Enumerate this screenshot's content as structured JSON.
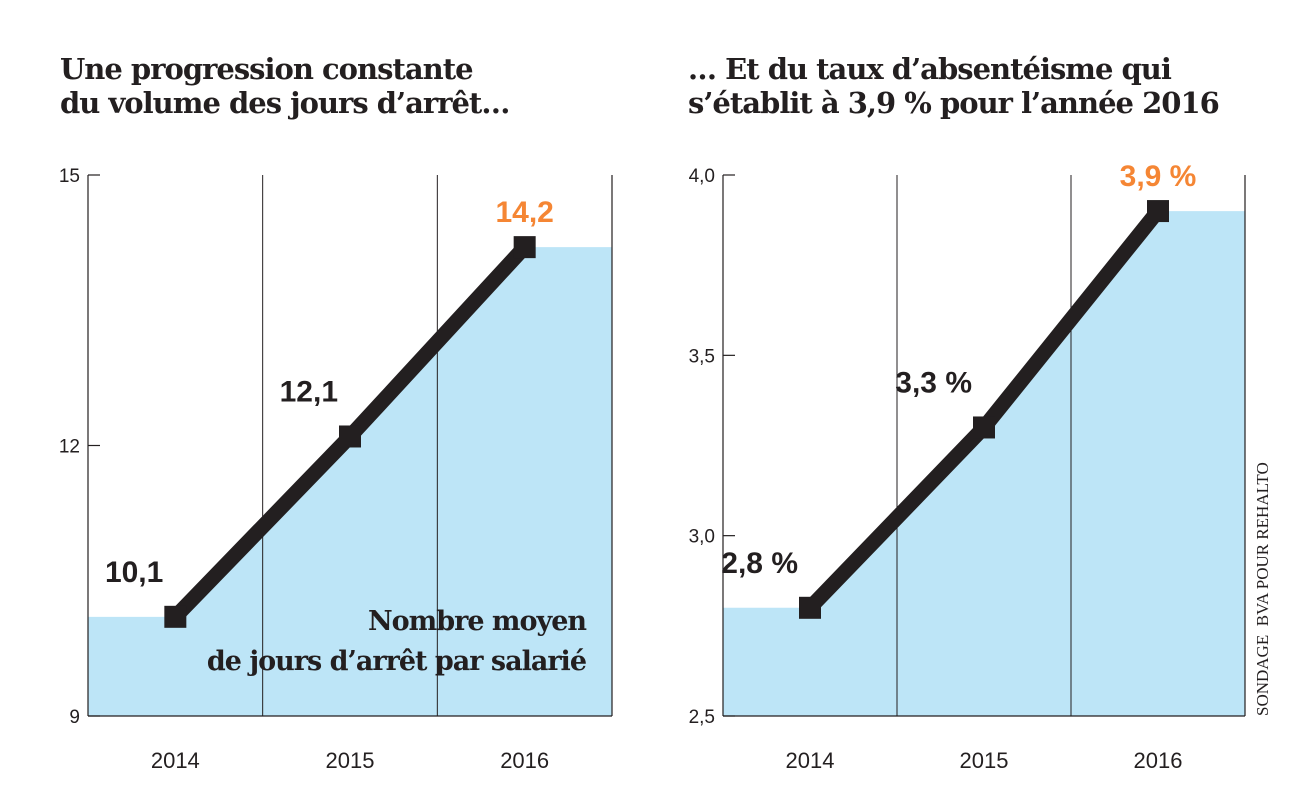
{
  "chart_data": [
    {
      "type": "area",
      "title": "Une progression constante du volume des jours d’arrêt…",
      "title_lines": [
        "Une progression constante",
        "du volume des jours d’arrêt…"
      ],
      "categories": [
        "2014",
        "2015",
        "2016"
      ],
      "values": [
        10.1,
        12.1,
        14.2
      ],
      "labels": [
        "10,1",
        "12,1",
        "14,2"
      ],
      "ylim": [
        9,
        15
      ],
      "yticks": [
        9,
        12,
        15
      ],
      "ytick_labels": [
        "9",
        "12",
        "15"
      ],
      "annotation_lines": [
        "Nombre moyen",
        "de jours d’arrêt par salarié"
      ],
      "grid": true
    },
    {
      "type": "area",
      "title": "… Et du taux d’absentéisme qui s’établit à 3,9 % pour l’année 2016",
      "title_lines": [
        "… Et du taux d’absentéisme qui",
        "s’établit à 3,9 % pour l’année 2016"
      ],
      "categories": [
        "2014",
        "2015",
        "2016"
      ],
      "values": [
        2.8,
        3.3,
        3.9
      ],
      "labels": [
        "2,8 %",
        "3,3 %",
        "3,9 %"
      ],
      "ylim": [
        2.5,
        4.0
      ],
      "yticks": [
        2.5,
        3.0,
        3.5,
        4.0
      ],
      "ytick_labels": [
        "2,5",
        "3,0",
        "3,5",
        "4,0"
      ],
      "grid": true
    }
  ],
  "source": "SONDAGE  BVA POUR REHALTO",
  "colors": {
    "area": "#bde5f7",
    "line": "#231f20",
    "highlight": "#f58634",
    "text": "#231f20"
  }
}
